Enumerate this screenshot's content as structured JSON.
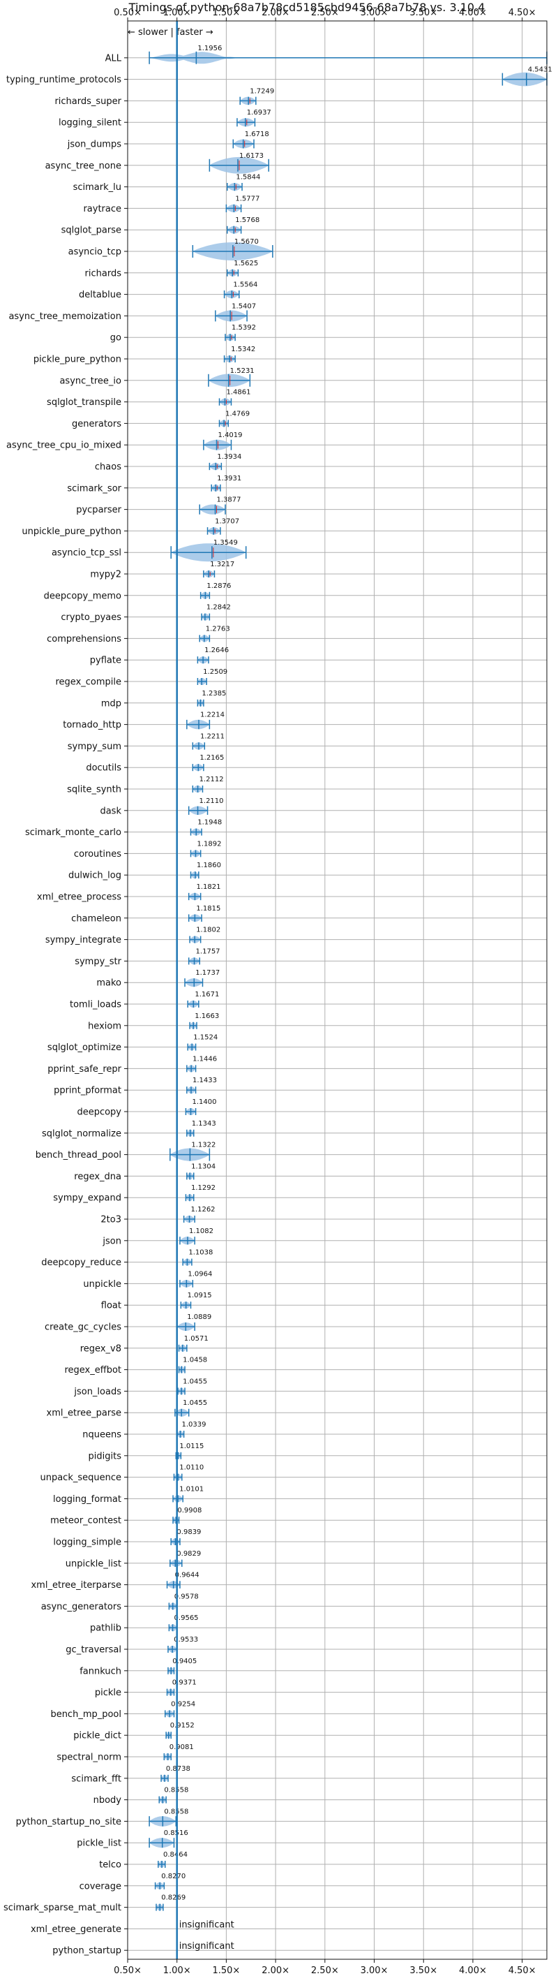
{
  "chart_data": {
    "type": "violin",
    "title": "Timings of python-68a7b78cd5185cbd9456-68a7b78 vs. 3.10.4",
    "legend_text": "← slower | faster →",
    "xlim": [
      0.5,
      4.75
    ],
    "reference_x": 1.0,
    "x_ticks": [
      0.5,
      1.0,
      1.5,
      2.0,
      2.5,
      3.0,
      3.5,
      4.0,
      4.5
    ],
    "x_tick_labels": [
      "0.50×",
      "1.00×",
      "1.50×",
      "2.00×",
      "2.50×",
      "3.00×",
      "3.50×",
      "4.00×",
      "4.50×"
    ],
    "insignificant_label": "insignificant",
    "grid": true,
    "colors": {
      "violin": "#9ec3e6",
      "line": "#1f77b4",
      "median": "#d62728",
      "grid": "#b0b0b0"
    },
    "benchmarks": [
      {
        "name": "ALL",
        "value": 1.1956,
        "label": "1.1956",
        "low": 0.72,
        "high": 4.75
      },
      {
        "name": "typing_runtime_protocols",
        "value": 4.5431,
        "label": "4.5431",
        "low": 4.3,
        "high": 4.75
      },
      {
        "name": "richards_super",
        "value": 1.7249,
        "label": "1.7249",
        "low": 1.64,
        "high": 1.8
      },
      {
        "name": "logging_silent",
        "value": 1.6937,
        "label": "1.6937",
        "low": 1.61,
        "high": 1.79
      },
      {
        "name": "json_dumps",
        "value": 1.6718,
        "label": "1.6718",
        "low": 1.57,
        "high": 1.78
      },
      {
        "name": "async_tree_none",
        "value": 1.6173,
        "label": "1.6173",
        "low": 1.33,
        "high": 1.93
      },
      {
        "name": "scimark_lu",
        "value": 1.5844,
        "label": "1.5844",
        "low": 1.51,
        "high": 1.66
      },
      {
        "name": "raytrace",
        "value": 1.5777,
        "label": "1.5777",
        "low": 1.5,
        "high": 1.65
      },
      {
        "name": "sqlglot_parse",
        "value": 1.5768,
        "label": "1.5768",
        "low": 1.51,
        "high": 1.65
      },
      {
        "name": "asyncio_tcp",
        "value": 1.567,
        "label": "1.5670",
        "low": 1.16,
        "high": 1.97
      },
      {
        "name": "richards",
        "value": 1.5625,
        "label": "1.5625",
        "low": 1.51,
        "high": 1.62
      },
      {
        "name": "deltablue",
        "value": 1.5564,
        "label": "1.5564",
        "low": 1.48,
        "high": 1.63
      },
      {
        "name": "async_tree_memoization",
        "value": 1.5407,
        "label": "1.5407",
        "low": 1.39,
        "high": 1.71
      },
      {
        "name": "go",
        "value": 1.5392,
        "label": "1.5392",
        "low": 1.49,
        "high": 1.59
      },
      {
        "name": "pickle_pure_python",
        "value": 1.5342,
        "label": "1.5342",
        "low": 1.48,
        "high": 1.59
      },
      {
        "name": "async_tree_io",
        "value": 1.5231,
        "label": "1.5231",
        "low": 1.32,
        "high": 1.74
      },
      {
        "name": "sqlglot_transpile",
        "value": 1.4861,
        "label": "1.4861",
        "low": 1.43,
        "high": 1.55
      },
      {
        "name": "generators",
        "value": 1.4769,
        "label": "1.4769",
        "low": 1.43,
        "high": 1.52
      },
      {
        "name": "async_tree_cpu_io_mixed",
        "value": 1.4019,
        "label": "1.4019",
        "low": 1.27,
        "high": 1.55
      },
      {
        "name": "chaos",
        "value": 1.3934,
        "label": "1.3934",
        "low": 1.33,
        "high": 1.45
      },
      {
        "name": "scimark_sor",
        "value": 1.3931,
        "label": "1.3931",
        "low": 1.35,
        "high": 1.44
      },
      {
        "name": "pycparser",
        "value": 1.3877,
        "label": "1.3877",
        "low": 1.23,
        "high": 1.49
      },
      {
        "name": "unpickle_pure_python",
        "value": 1.3707,
        "label": "1.3707",
        "low": 1.31,
        "high": 1.44
      },
      {
        "name": "asyncio_tcp_ssl",
        "value": 1.3549,
        "label": "1.3549",
        "low": 0.94,
        "high": 1.7
      },
      {
        "name": "mypy2",
        "value": 1.3217,
        "label": "1.3217",
        "low": 1.27,
        "high": 1.38
      },
      {
        "name": "deepcopy_memo",
        "value": 1.2876,
        "label": "1.2876",
        "low": 1.24,
        "high": 1.33
      },
      {
        "name": "crypto_pyaes",
        "value": 1.2842,
        "label": "1.2842",
        "low": 1.25,
        "high": 1.33
      },
      {
        "name": "comprehensions",
        "value": 1.2763,
        "label": "1.2763",
        "low": 1.23,
        "high": 1.33
      },
      {
        "name": "pyflate",
        "value": 1.2646,
        "label": "1.2646",
        "low": 1.21,
        "high": 1.32
      },
      {
        "name": "regex_compile",
        "value": 1.2509,
        "label": "1.2509",
        "low": 1.21,
        "high": 1.3
      },
      {
        "name": "mdp",
        "value": 1.2385,
        "label": "1.2385",
        "low": 1.21,
        "high": 1.27
      },
      {
        "name": "tornado_http",
        "value": 1.2214,
        "label": "1.2214",
        "low": 1.1,
        "high": 1.33
      },
      {
        "name": "sympy_sum",
        "value": 1.2211,
        "label": "1.2211",
        "low": 1.16,
        "high": 1.28
      },
      {
        "name": "docutils",
        "value": 1.2165,
        "label": "1.2165",
        "low": 1.16,
        "high": 1.27
      },
      {
        "name": "sqlite_synth",
        "value": 1.2112,
        "label": "1.2112",
        "low": 1.16,
        "high": 1.26
      },
      {
        "name": "dask",
        "value": 1.211,
        "label": "1.2110",
        "low": 1.12,
        "high": 1.31
      },
      {
        "name": "scimark_monte_carlo",
        "value": 1.1948,
        "label": "1.1948",
        "low": 1.14,
        "high": 1.25
      },
      {
        "name": "coroutines",
        "value": 1.1892,
        "label": "1.1892",
        "low": 1.14,
        "high": 1.24
      },
      {
        "name": "dulwich_log",
        "value": 1.186,
        "label": "1.1860",
        "low": 1.14,
        "high": 1.22
      },
      {
        "name": "xml_etree_process",
        "value": 1.1821,
        "label": "1.1821",
        "low": 1.12,
        "high": 1.24
      },
      {
        "name": "chameleon",
        "value": 1.1815,
        "label": "1.1815",
        "low": 1.12,
        "high": 1.25
      },
      {
        "name": "sympy_integrate",
        "value": 1.1802,
        "label": "1.1802",
        "low": 1.13,
        "high": 1.24
      },
      {
        "name": "sympy_str",
        "value": 1.1757,
        "label": "1.1757",
        "low": 1.12,
        "high": 1.23
      },
      {
        "name": "mako",
        "value": 1.1737,
        "label": "1.1737",
        "low": 1.08,
        "high": 1.26
      },
      {
        "name": "tomli_loads",
        "value": 1.1671,
        "label": "1.1671",
        "low": 1.11,
        "high": 1.22
      },
      {
        "name": "hexiom",
        "value": 1.1663,
        "label": "1.1663",
        "low": 1.13,
        "high": 1.2
      },
      {
        "name": "sqlglot_optimize",
        "value": 1.1524,
        "label": "1.1524",
        "low": 1.11,
        "high": 1.19
      },
      {
        "name": "pprint_safe_repr",
        "value": 1.1446,
        "label": "1.1446",
        "low": 1.1,
        "high": 1.19
      },
      {
        "name": "pprint_pformat",
        "value": 1.1433,
        "label": "1.1433",
        "low": 1.1,
        "high": 1.19
      },
      {
        "name": "deepcopy",
        "value": 1.14,
        "label": "1.1400",
        "low": 1.09,
        "high": 1.19
      },
      {
        "name": "sqlglot_normalize",
        "value": 1.1343,
        "label": "1.1343",
        "low": 1.1,
        "high": 1.17
      },
      {
        "name": "bench_thread_pool",
        "value": 1.1322,
        "label": "1.1322",
        "low": 0.93,
        "high": 1.33
      },
      {
        "name": "regex_dna",
        "value": 1.1304,
        "label": "1.1304",
        "low": 1.1,
        "high": 1.17
      },
      {
        "name": "sympy_expand",
        "value": 1.1292,
        "label": "1.1292",
        "low": 1.09,
        "high": 1.17
      },
      {
        "name": "2to3",
        "value": 1.1262,
        "label": "1.1262",
        "low": 1.07,
        "high": 1.18
      },
      {
        "name": "json",
        "value": 1.1082,
        "label": "1.1082",
        "low": 1.03,
        "high": 1.18
      },
      {
        "name": "deepcopy_reduce",
        "value": 1.1038,
        "label": "1.1038",
        "low": 1.06,
        "high": 1.15
      },
      {
        "name": "unpickle",
        "value": 1.0964,
        "label": "1.0964",
        "low": 1.03,
        "high": 1.16
      },
      {
        "name": "float",
        "value": 1.0915,
        "label": "1.0915",
        "low": 1.04,
        "high": 1.14
      },
      {
        "name": "create_gc_cycles",
        "value": 1.0889,
        "label": "1.0889",
        "low": 1.0,
        "high": 1.18
      },
      {
        "name": "regex_v8",
        "value": 1.0571,
        "label": "1.0571",
        "low": 1.02,
        "high": 1.1
      },
      {
        "name": "regex_effbot",
        "value": 1.0458,
        "label": "1.0458",
        "low": 1.02,
        "high": 1.08
      },
      {
        "name": "json_loads",
        "value": 1.0455,
        "label": "1.0455",
        "low": 1.01,
        "high": 1.08
      },
      {
        "name": "xml_etree_parse",
        "value": 1.0455,
        "label": "1.0455",
        "low": 0.98,
        "high": 1.12
      },
      {
        "name": "nqueens",
        "value": 1.0339,
        "label": "1.0339",
        "low": 1.0,
        "high": 1.07
      },
      {
        "name": "pidigits",
        "value": 1.0115,
        "label": "1.0115",
        "low": 0.99,
        "high": 1.04
      },
      {
        "name": "unpack_sequence",
        "value": 1.011,
        "label": "1.0110",
        "low": 0.97,
        "high": 1.05
      },
      {
        "name": "logging_format",
        "value": 1.0101,
        "label": "1.0101",
        "low": 0.96,
        "high": 1.06
      },
      {
        "name": "meteor_contest",
        "value": 0.9908,
        "label": "0.9908",
        "low": 0.96,
        "high": 1.02
      },
      {
        "name": "logging_simple",
        "value": 0.9839,
        "label": "0.9839",
        "low": 0.94,
        "high": 1.03
      },
      {
        "name": "unpickle_list",
        "value": 0.9829,
        "label": "0.9829",
        "low": 0.93,
        "high": 1.05
      },
      {
        "name": "xml_etree_iterparse",
        "value": 0.9644,
        "label": "0.9644",
        "low": 0.9,
        "high": 1.03
      },
      {
        "name": "async_generators",
        "value": 0.9578,
        "label": "0.9578",
        "low": 0.92,
        "high": 1.0
      },
      {
        "name": "pathlib",
        "value": 0.9565,
        "label": "0.9565",
        "low": 0.92,
        "high": 1.0
      },
      {
        "name": "gc_traversal",
        "value": 0.9533,
        "label": "0.9533",
        "low": 0.91,
        "high": 1.0
      },
      {
        "name": "fannkuch",
        "value": 0.9405,
        "label": "0.9405",
        "low": 0.91,
        "high": 0.97
      },
      {
        "name": "pickle",
        "value": 0.9371,
        "label": "0.9371",
        "low": 0.9,
        "high": 0.97
      },
      {
        "name": "bench_mp_pool",
        "value": 0.9254,
        "label": "0.9254",
        "low": 0.88,
        "high": 0.97
      },
      {
        "name": "pickle_dict",
        "value": 0.9152,
        "label": "0.9152",
        "low": 0.89,
        "high": 0.94
      },
      {
        "name": "spectral_norm",
        "value": 0.9081,
        "label": "0.9081",
        "low": 0.87,
        "high": 0.94
      },
      {
        "name": "scimark_fft",
        "value": 0.8738,
        "label": "0.8738",
        "low": 0.84,
        "high": 0.91
      },
      {
        "name": "nbody",
        "value": 0.8558,
        "label": "0.8558",
        "low": 0.82,
        "high": 0.89
      },
      {
        "name": "python_startup_no_site",
        "value": 0.8558,
        "label": "0.8558",
        "low": 0.72,
        "high": 0.99
      },
      {
        "name": "pickle_list",
        "value": 0.8516,
        "label": "0.8516",
        "low": 0.72,
        "high": 0.97
      },
      {
        "name": "telco",
        "value": 0.8464,
        "label": "0.8464",
        "low": 0.81,
        "high": 0.88
      },
      {
        "name": "coverage",
        "value": 0.827,
        "label": "0.8270",
        "low": 0.78,
        "high": 0.87
      },
      {
        "name": "scimark_sparse_mat_mult",
        "value": 0.8269,
        "label": "0.8269",
        "low": 0.79,
        "high": 0.86
      },
      {
        "name": "xml_etree_generate",
        "value": null,
        "label": "insignificant"
      },
      {
        "name": "python_startup",
        "value": null,
        "label": "insignificant"
      }
    ]
  }
}
